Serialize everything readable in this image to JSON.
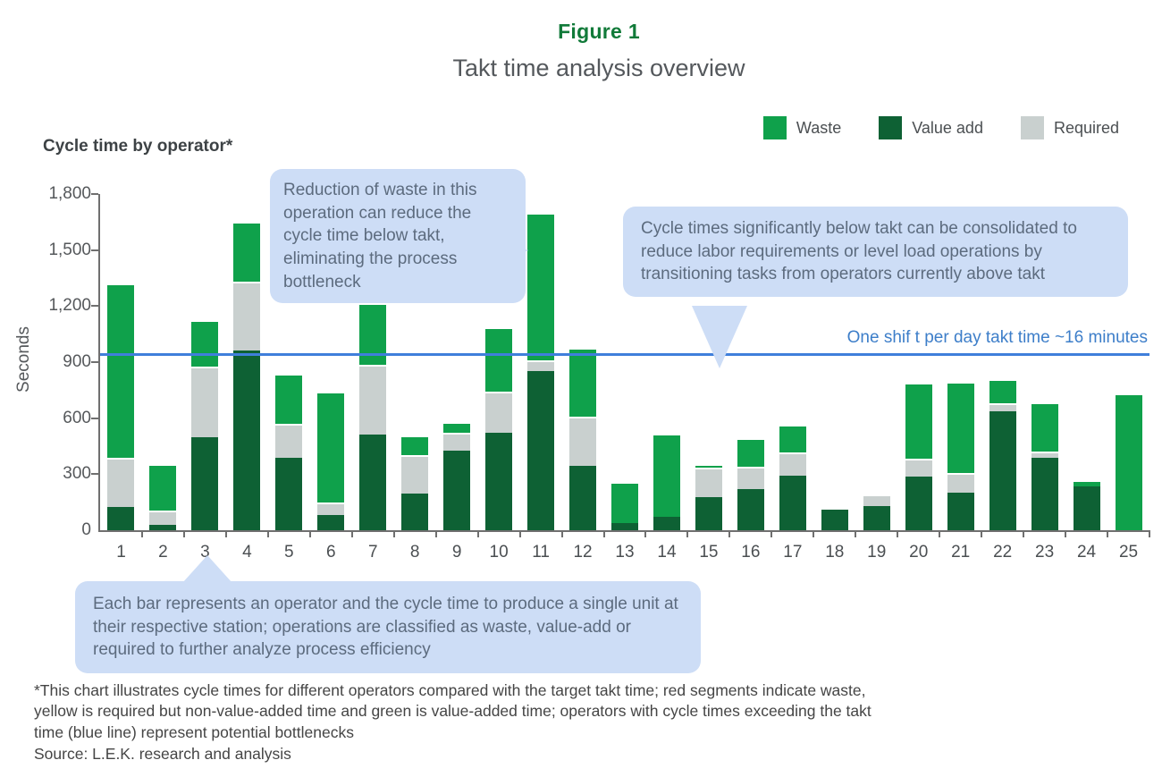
{
  "figure": {
    "label": "Figure 1",
    "title": "Takt time analysis overview"
  },
  "chart": {
    "title": "Cycle time by operator*",
    "y_axis_label": "Seconds",
    "y_ticks": [
      "1,800",
      "1,500",
      "1,200",
      "900",
      "600",
      "300",
      "0"
    ]
  },
  "legend": {
    "items": [
      {
        "label": "Waste",
        "color": "#0fa14b"
      },
      {
        "label": "Value add",
        "color": "#0e6134"
      },
      {
        "label": "Required",
        "color": "#c9d0cf"
      }
    ]
  },
  "takt": {
    "label": "One shif t per day takt time ~16 minutes",
    "value": 945,
    "color": "#3f7fdb"
  },
  "callouts": {
    "bottleneck": "Reduction of waste in this operation can reduce the cycle time below takt, eliminating the process bottleneck",
    "consolidate": "Cycle times significantly below takt can be consolidated to reduce labor requirements or level load operations by transitioning tasks from operators currently above takt",
    "bars_explain": "Each bar represents an operator and the cycle time to produce a single unit at their respective station; operations are classified as waste, value-add or required to further analyze process efficiency"
  },
  "footnote": {
    "lines": [
      "*This chart illustrates cycle times for different operators compared with the target takt time; red segments indicate waste,",
      "yellow is required but non-value-added time and green is value-added time; operators with cycle times exceeding the takt",
      "time (blue line) represent potential bottlenecks"
    ],
    "source": "Source: L.E.K. research and analysis"
  },
  "chart_data": {
    "type": "bar",
    "stacked": true,
    "title": "Cycle time by operator*",
    "xlabel": "",
    "ylabel": "Seconds",
    "ylim": [
      0,
      1800
    ],
    "y_tick_step": 300,
    "grid": false,
    "legend_position": "top-right",
    "categories": [
      1,
      2,
      3,
      4,
      5,
      6,
      7,
      8,
      9,
      10,
      11,
      12,
      13,
      14,
      15,
      16,
      17,
      18,
      19,
      20,
      21,
      22,
      23,
      24,
      25
    ],
    "series": [
      {
        "name": "Value add",
        "color": "#0e6134",
        "values": [
          125,
          30,
          500,
          960,
          390,
          80,
          510,
          195,
          425,
          520,
          850,
          345,
          40,
          70,
          175,
          220,
          290,
          110,
          130,
          285,
          200,
          635,
          390,
          235,
          0
        ]
      },
      {
        "name": "Required",
        "color": "#c9d0cf",
        "values": [
          265,
          75,
          375,
          370,
          180,
          70,
          375,
          205,
          95,
          220,
          60,
          265,
          0,
          0,
          160,
          120,
          125,
          0,
          60,
          100,
          105,
          45,
          30,
          0,
          0
        ]
      },
      {
        "name": "Waste",
        "color": "#0fa14b",
        "values": [
          930,
          250,
          250,
          320,
          270,
          590,
          330,
          110,
          60,
          345,
          790,
          365,
          220,
          445,
          20,
          155,
          150,
          0,
          0,
          405,
          490,
          130,
          265,
          35,
          725
        ]
      }
    ],
    "reference_line": {
      "value": 945,
      "label": "One shif t per day takt time ~16 minutes",
      "color": "#3f7fdb"
    }
  }
}
